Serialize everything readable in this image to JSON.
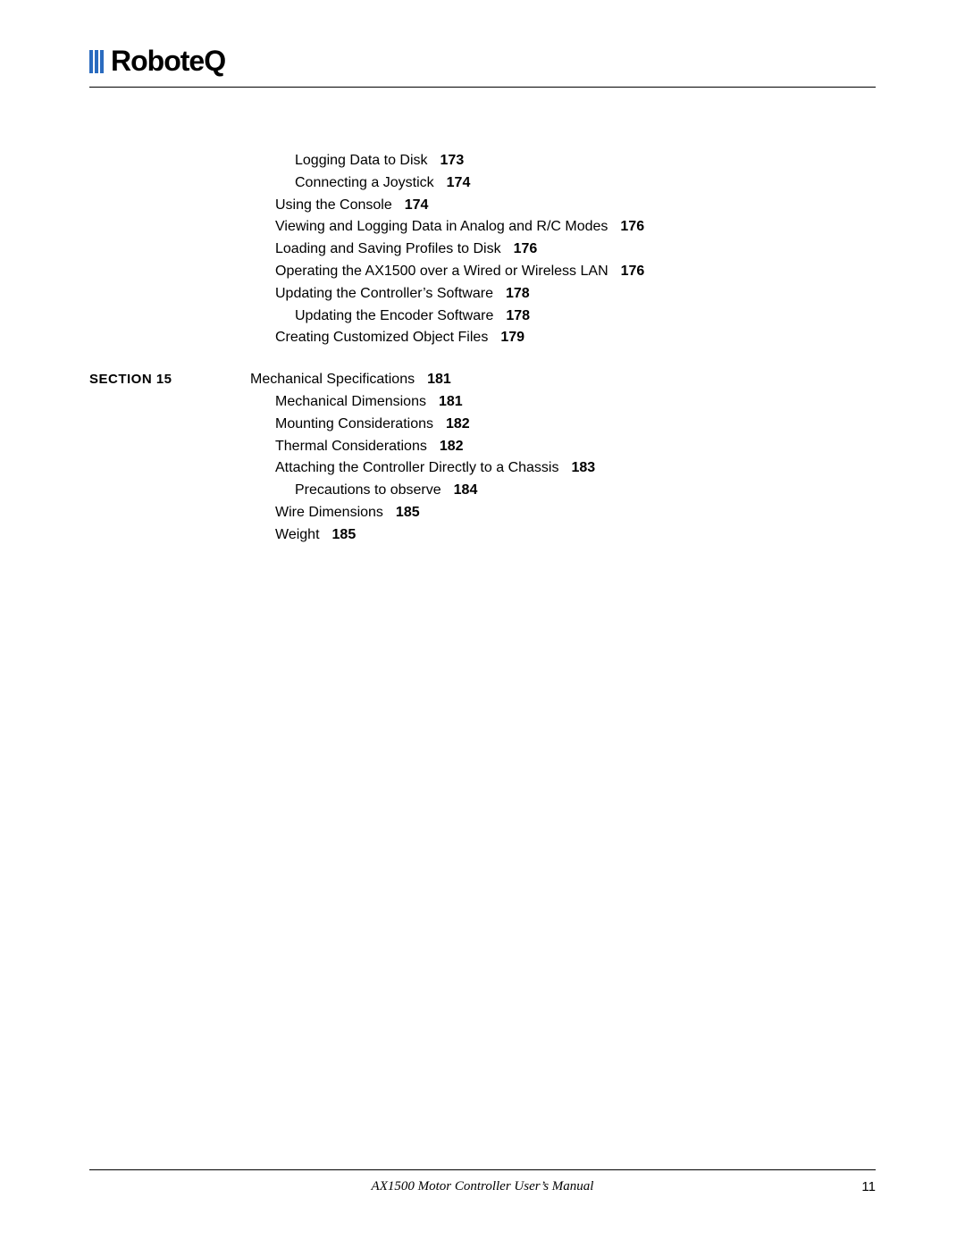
{
  "logo": {
    "text": "RoboteQ",
    "bar_color": "#2a6bbf"
  },
  "colors": {
    "text": "#000000",
    "background": "#ffffff",
    "rule": "#000000"
  },
  "typography": {
    "body_fontsize_pt": 12,
    "logo_fontsize_pt": 24,
    "logo_fontweight": 900
  },
  "blocks": [
    {
      "section_label": "",
      "entries": [
        {
          "level": 2,
          "title": "Logging Data to Disk",
          "page": "173"
        },
        {
          "level": 2,
          "title": "Connecting a Joystick",
          "page": "174"
        },
        {
          "level": 1,
          "title": "Using the Console",
          "page": "174"
        },
        {
          "level": 1,
          "title": "Viewing and Logging Data in Analog and R/C Modes",
          "page": "176"
        },
        {
          "level": 1,
          "title": "Loading and Saving Profiles to Disk",
          "page": "176"
        },
        {
          "level": 1,
          "title": "Operating the AX1500 over a Wired or Wireless LAN",
          "page": "176"
        },
        {
          "level": 1,
          "title": "Updating the Controller’s Software",
          "page": "178"
        },
        {
          "level": 2,
          "title": "Updating the Encoder Software",
          "page": "178"
        },
        {
          "level": 1,
          "title": "Creating Customized Object Files",
          "page": "179"
        }
      ]
    },
    {
      "section_label": "SECTION 15",
      "entries": [
        {
          "level": 0,
          "title": "Mechanical Specifications",
          "page": "181"
        },
        {
          "level": 1,
          "title": "Mechanical Dimensions",
          "page": "181"
        },
        {
          "level": 1,
          "title": "Mounting Considerations",
          "page": "182"
        },
        {
          "level": 1,
          "title": "Thermal Considerations",
          "page": "182"
        },
        {
          "level": 1,
          "title": "Attaching the Controller Directly to a Chassis",
          "page": "183"
        },
        {
          "level": 2,
          "title": "Precautions to observe",
          "page": "184"
        },
        {
          "level": 1,
          "title": "Wire Dimensions",
          "page": "185"
        },
        {
          "level": 1,
          "title": "Weight",
          "page": "185"
        }
      ]
    }
  ],
  "footer": {
    "title": "AX1500 Motor Controller User’s Manual",
    "page": "11"
  }
}
